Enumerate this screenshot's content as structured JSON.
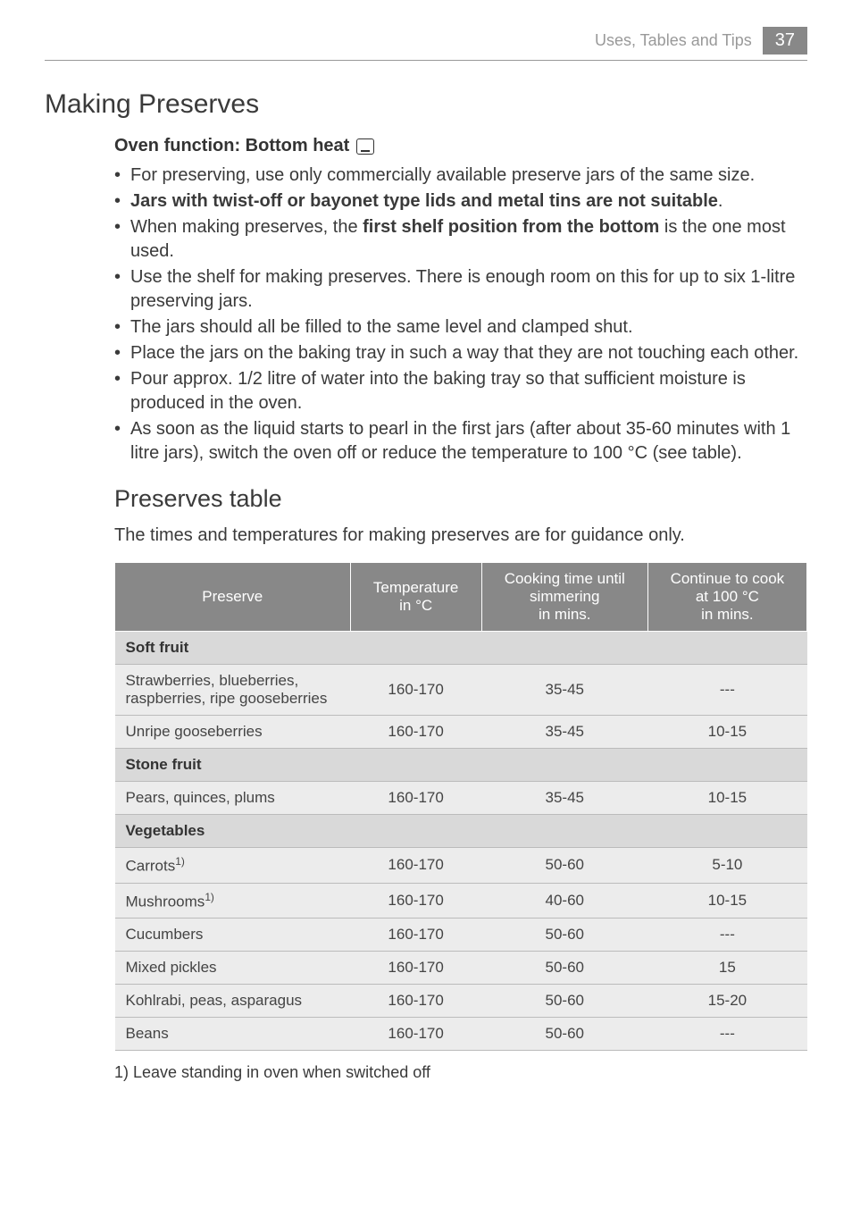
{
  "header": {
    "section_label": "Uses, Tables and Tips",
    "page_number": "37"
  },
  "title": "Making Preserves",
  "oven_function": {
    "prefix": "Oven function: Bottom heat",
    "icon_name": "bottom-heat-icon"
  },
  "bullets": [
    {
      "segments": [
        {
          "text": "For preserving, use only commercially available preserve jars of the same size."
        }
      ]
    },
    {
      "segments": [
        {
          "text": "Jars with twist-off or bayonet type lids and metal tins are not suitable",
          "bold": true
        },
        {
          "text": "."
        }
      ]
    },
    {
      "segments": [
        {
          "text": "When making preserves, the "
        },
        {
          "text": "first shelf position from the bottom",
          "bold": true
        },
        {
          "text": " is the one most used."
        }
      ]
    },
    {
      "segments": [
        {
          "text": "Use the shelf for making preserves. There is enough room on this for up to six 1-litre preserving jars."
        }
      ]
    },
    {
      "segments": [
        {
          "text": "The jars should all be filled to the same level and clamped shut."
        }
      ]
    },
    {
      "segments": [
        {
          "text": "Place the jars on the baking tray in such a way that they are not touching each other."
        }
      ]
    },
    {
      "segments": [
        {
          "text": "Pour approx. 1/2 litre of water into the baking tray so that sufficient moisture is produced in the oven."
        }
      ]
    },
    {
      "segments": [
        {
          "text": "As soon as the liquid starts to pearl in the first jars (after about 35-60 minutes with 1 litre jars), switch the oven off or reduce the temperature to 100 °C (see table)."
        }
      ]
    }
  ],
  "subheading": "Preserves table",
  "table_caption": "The times and temperatures for making preserves are for guidance only.",
  "table": {
    "columns": [
      "Preserve",
      "Temperature in °C",
      "Cooking time until simmering in mins.",
      "Continue to cook at 100 °C in mins."
    ],
    "col_widths": [
      "34%",
      "19%",
      "24%",
      "23%"
    ],
    "header_bg": "#888888",
    "header_fg": "#ffffff",
    "section_bg": "#d9d9d9",
    "data_bg": "#ececec",
    "border_color": "#bbbbbb",
    "rows": [
      {
        "type": "section",
        "label": "Soft fruit"
      },
      {
        "type": "data",
        "cells": [
          "Strawberries, blueberries, raspberries, ripe gooseberries",
          "160-170",
          "35-45",
          "---"
        ]
      },
      {
        "type": "data",
        "cells": [
          "Unripe gooseberries",
          "160-170",
          "35-45",
          "10-15"
        ]
      },
      {
        "type": "section",
        "label": "Stone fruit"
      },
      {
        "type": "data",
        "cells": [
          "Pears, quinces, plums",
          "160-170",
          "35-45",
          "10-15"
        ]
      },
      {
        "type": "section",
        "label": "Vegetables"
      },
      {
        "type": "data",
        "cells": [
          "Carrots",
          "160-170",
          "50-60",
          "5-10"
        ],
        "sup": "1)"
      },
      {
        "type": "data",
        "cells": [
          "Mushrooms",
          "160-170",
          "40-60",
          "10-15"
        ],
        "sup": "1)"
      },
      {
        "type": "data",
        "cells": [
          "Cucumbers",
          "160-170",
          "50-60",
          "---"
        ]
      },
      {
        "type": "data",
        "cells": [
          "Mixed pickles",
          "160-170",
          "50-60",
          "15"
        ]
      },
      {
        "type": "data",
        "cells": [
          "Kohlrabi, peas, asparagus",
          "160-170",
          "50-60",
          "15-20"
        ]
      },
      {
        "type": "data",
        "cells": [
          "Beans",
          "160-170",
          "50-60",
          "---"
        ]
      }
    ]
  },
  "footnote": "1) Leave standing in oven when switched off"
}
